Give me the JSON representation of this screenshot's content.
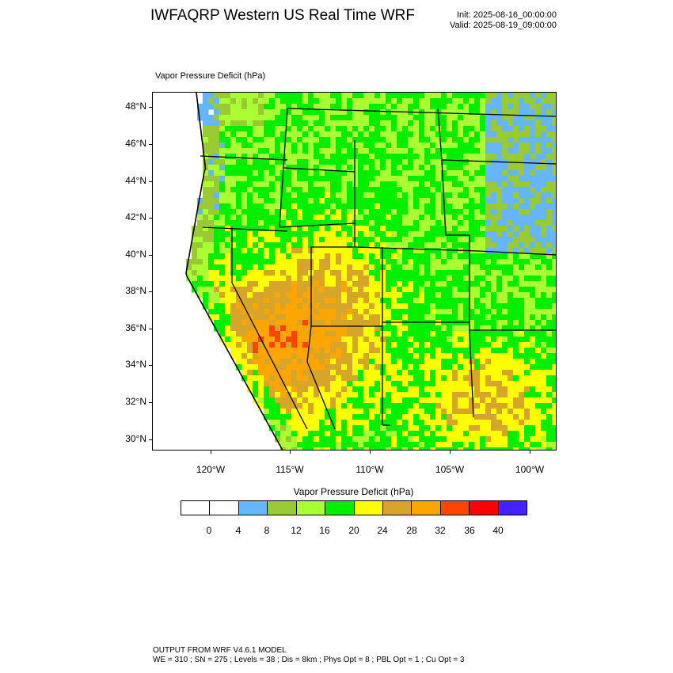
{
  "header": {
    "title": "IWFAQRP Western US Real Time WRF",
    "init": "Init: 2025-08-16_00:00:00",
    "valid": "Valid: 2025-08-19_09:00:00"
  },
  "map": {
    "field_label": "Vapor Pressure Deficit   (hPa)",
    "lat_labels": [
      "48°N",
      "46°N",
      "44°N",
      "42°N",
      "40°N",
      "38°N",
      "36°N",
      "34°N",
      "32°N",
      "30°N"
    ],
    "lon_labels": [
      "120°W",
      "115°W",
      "110°W",
      "105°W",
      "100°W"
    ],
    "state_line_color": "#000000",
    "county_line_color": "#333333"
  },
  "colorbar": {
    "title": "Vapor Pressure Deficit  (hPa)",
    "colors": [
      "#ffffff",
      "#ffffff",
      "#66b5ff",
      "#99c933",
      "#aaff33",
      "#00ee00",
      "#ffff00",
      "#d8a52b",
      "#ffa500",
      "#ff4500",
      "#ff0000",
      "#4422ff"
    ],
    "labels": [
      "0",
      "4",
      "8",
      "12",
      "16",
      "20",
      "24",
      "28",
      "32",
      "36",
      "40"
    ]
  },
  "footer": {
    "line1": "OUTPUT FROM WRF V4.6.1 MODEL",
    "line2": "WE = 310 ; SN = 275 ; Levels = 38 ; Dis = 8km ; Phys Opt = 8 ; PBL Opt = 1 ; Cu Opt = 3"
  }
}
